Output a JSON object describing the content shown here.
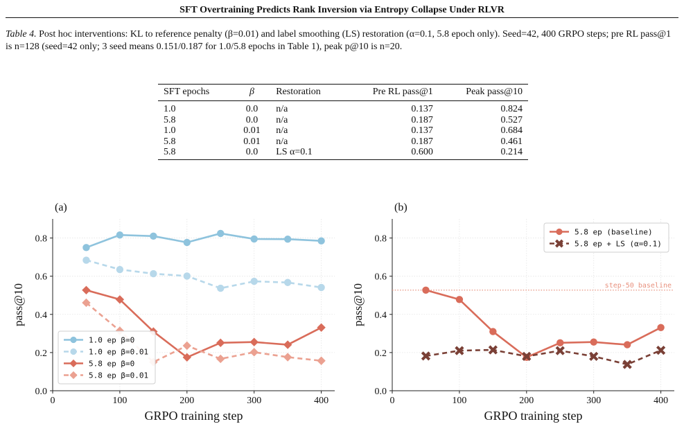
{
  "header": {
    "title": "SFT Overtraining Predicts Rank Inversion via Entropy Collapse Under RLVR"
  },
  "caption": {
    "label": "Table 4.",
    "text": " Post hoc interventions: KL to reference penalty (β=0.01) and label smoothing (LS) restoration (α=0.1, 5.8 epoch only). Seed=42, 400 GRPO steps; pre RL pass@1 is n=128 (seed=42 only; 3 seed means 0.151/0.187 for 1.0/5.8 epochs in Table 1), peak p@10 is n=20."
  },
  "table": {
    "headers": [
      "SFT epochs",
      "β",
      "Restoration",
      "Pre RL pass@1",
      "Peak pass@10"
    ],
    "rows": [
      [
        "1.0",
        "0.0",
        "n/a",
        "0.137",
        "0.824"
      ],
      [
        "5.8",
        "0.0",
        "n/a",
        "0.187",
        "0.527"
      ],
      [
        "1.0",
        "0.01",
        "n/a",
        "0.137",
        "0.684"
      ],
      [
        "5.8",
        "0.01",
        "n/a",
        "0.187",
        "0.461"
      ],
      [
        "5.8",
        "0.0",
        "LS α=0.1",
        "0.600",
        "0.214"
      ]
    ]
  },
  "chart_data": [
    {
      "type": "line",
      "panel_label": "(a)",
      "xlabel": "GRPO training step",
      "ylabel": "pass@10",
      "xlim": [
        0,
        420
      ],
      "ylim": [
        0,
        0.9
      ],
      "xticks": [
        0,
        100,
        200,
        300,
        400
      ],
      "yticks": [
        0.0,
        0.2,
        0.4,
        0.6,
        0.8
      ],
      "grid": true,
      "legend_position": "lower-left",
      "x": [
        50,
        100,
        150,
        200,
        250,
        300,
        350,
        400
      ],
      "series": [
        {
          "name": "1.0 ep β=0",
          "color": "#8ec3dd",
          "style": "solid",
          "marker": "circle",
          "values": [
            0.75,
            0.816,
            0.81,
            0.777,
            0.824,
            0.795,
            0.794,
            0.785
          ]
        },
        {
          "name": "1.0 ep β=0.01",
          "color": "#b7d8ea",
          "style": "dashed",
          "marker": "circle",
          "values": [
            0.684,
            0.635,
            0.613,
            0.601,
            0.537,
            0.573,
            0.567,
            0.541
          ]
        },
        {
          "name": "5.8 ep β=0",
          "color": "#d96c5a",
          "style": "solid",
          "marker": "diamond",
          "values": [
            0.527,
            0.478,
            0.31,
            0.175,
            0.251,
            0.255,
            0.241,
            0.331
          ]
        },
        {
          "name": "5.8 ep β=0.01",
          "color": "#eba191",
          "style": "dashed",
          "marker": "diamond",
          "values": [
            0.461,
            0.314,
            0.15,
            0.236,
            0.167,
            0.202,
            0.176,
            0.157
          ]
        }
      ]
    },
    {
      "type": "line",
      "panel_label": "(b)",
      "xlabel": "GRPO training step",
      "ylabel": "pass@10",
      "xlim": [
        0,
        420
      ],
      "ylim": [
        0,
        0.9
      ],
      "xticks": [
        0,
        100,
        200,
        300,
        400
      ],
      "yticks": [
        0.0,
        0.2,
        0.4,
        0.6,
        0.8
      ],
      "grid": true,
      "legend_position": "upper-right",
      "x": [
        50,
        100,
        150,
        200,
        250,
        300,
        350,
        400
      ],
      "series": [
        {
          "name": "5.8 ep (baseline)",
          "color": "#d96c5a",
          "style": "solid",
          "marker": "circle",
          "values": [
            0.527,
            0.478,
            0.31,
            0.175,
            0.251,
            0.255,
            0.241,
            0.331
          ]
        },
        {
          "name": "5.8 ep + LS (α=0.1)",
          "color": "#7a4036",
          "style": "dashed",
          "marker": "x",
          "values": [
            0.182,
            0.21,
            0.214,
            0.18,
            0.21,
            0.18,
            0.138,
            0.212
          ]
        }
      ],
      "reference_line": {
        "label": "step-50 baseline",
        "value": 0.527,
        "color": "#e8917e"
      }
    }
  ]
}
